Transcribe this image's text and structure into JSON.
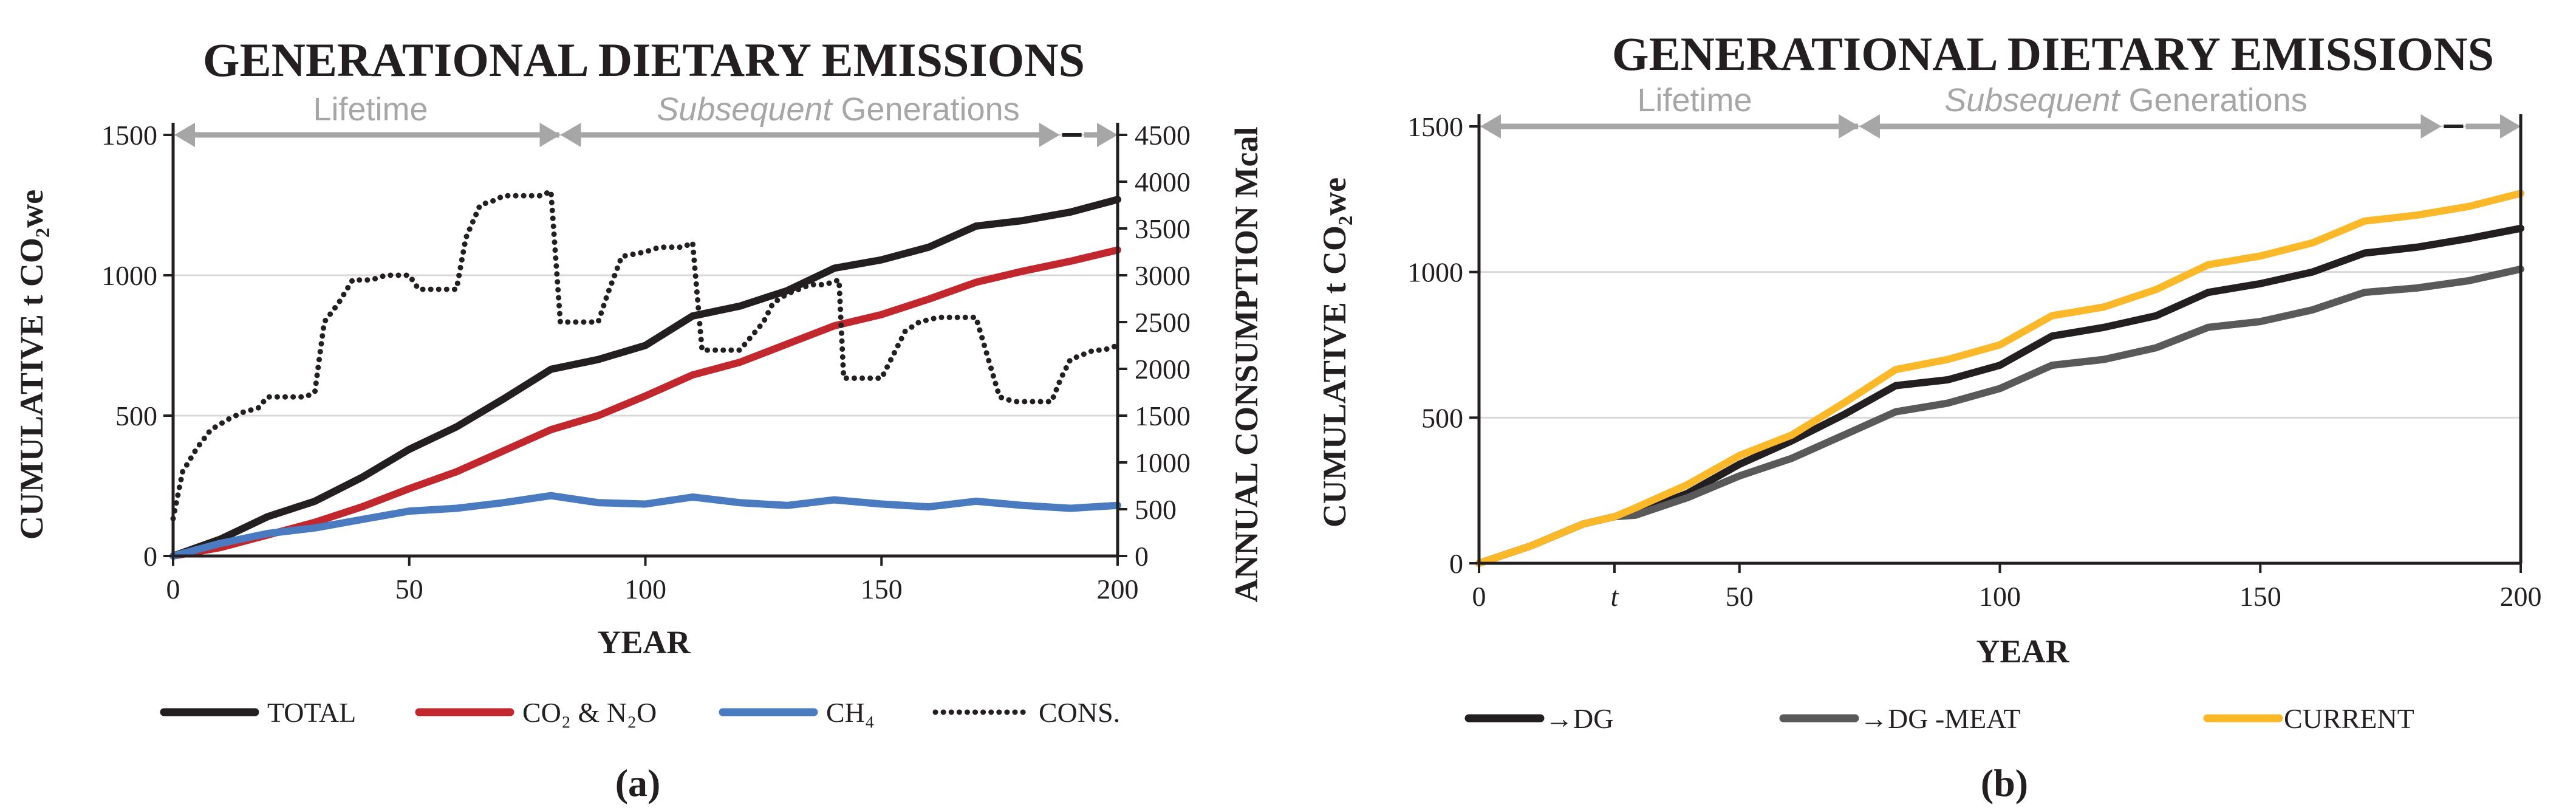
{
  "colors": {
    "total": "#231f20",
    "co2_n2o": "#c1272d",
    "ch4": "#4a7bc0",
    "cons": "#231f20",
    "to_dg": "#231f20",
    "to_dg_meat": "#595959",
    "current": "#fbb829",
    "band": "#a6a6a6",
    "grid": "#d9d9d9"
  },
  "chart_data": [
    {
      "panel_label": "(a)",
      "type": "line",
      "title": "GENERATIONAL DIETARY EMISSIONS",
      "xlabel": "YEAR",
      "ylabel": "CUMULATIVE t CO₂we",
      "y2label": "ANNUAL CONSUMPTION Mcal",
      "xlim": [
        0,
        200
      ],
      "ylim": [
        0,
        1500
      ],
      "y2lim": [
        0,
        4500
      ],
      "xticks": [
        "0",
        "50",
        "100",
        "150",
        "200"
      ],
      "yticks": [
        "0",
        "500",
        "1000",
        "1500"
      ],
      "y2ticks": [
        "0",
        "500",
        "1000",
        "1500",
        "2000",
        "2500",
        "3000",
        "3500",
        "4000",
        "4500"
      ],
      "band": {
        "lifetime": "Lifetime",
        "subsequent_italic": "Subsequent",
        "subsequent_rest": " Generations",
        "lifetime_end": 82,
        "break_at": 188
      },
      "legend": [
        "TOTAL",
        "CO₂ & N₂O",
        "CH₄",
        "CONS."
      ],
      "series": [
        {
          "name": "TOTAL",
          "color": "total",
          "style": "solid",
          "axis": "left",
          "x": [
            0,
            10,
            20,
            30,
            40,
            50,
            60,
            70,
            80,
            90,
            100,
            110,
            120,
            130,
            140,
            150,
            160,
            170,
            180,
            190,
            200
          ],
          "y": [
            0,
            60,
            140,
            195,
            280,
            380,
            460,
            560,
            665,
            700,
            750,
            855,
            890,
            945,
            1025,
            1055,
            1100,
            1175,
            1195,
            1225,
            1270
          ]
        },
        {
          "name": "CO₂ & N₂O",
          "color": "co2_n2o",
          "style": "solid",
          "axis": "left",
          "x": [
            0,
            10,
            20,
            30,
            40,
            50,
            60,
            70,
            80,
            90,
            100,
            110,
            120,
            130,
            140,
            150,
            160,
            170,
            180,
            190,
            200
          ],
          "y": [
            0,
            30,
            75,
            120,
            175,
            240,
            300,
            375,
            450,
            500,
            570,
            645,
            690,
            755,
            820,
            860,
            915,
            975,
            1015,
            1050,
            1090
          ]
        },
        {
          "name": "CH₄",
          "color": "ch4",
          "style": "solid",
          "axis": "left",
          "x": [
            0,
            10,
            20,
            30,
            40,
            50,
            60,
            70,
            80,
            90,
            100,
            110,
            120,
            130,
            140,
            150,
            160,
            170,
            180,
            190,
            200
          ],
          "y": [
            0,
            45,
            80,
            100,
            130,
            160,
            170,
            190,
            215,
            190,
            185,
            210,
            190,
            180,
            200,
            185,
            175,
            195,
            180,
            170,
            180
          ]
        },
        {
          "name": "CONS.",
          "color": "cons",
          "style": "dotted",
          "axis": "right",
          "x": [
            0,
            2,
            5,
            8,
            12,
            15,
            18,
            20,
            25,
            28,
            30,
            32,
            35,
            38,
            42,
            45,
            50,
            52,
            55,
            60,
            62,
            65,
            68,
            70,
            75,
            78,
            80,
            82,
            85,
            90,
            92,
            95,
            100,
            103,
            108,
            110,
            112,
            115,
            120,
            125,
            127,
            130,
            135,
            138,
            141,
            142,
            145,
            150,
            155,
            158,
            162,
            165,
            170,
            175,
            178,
            182,
            186,
            188,
            190,
            195,
            197,
            200
          ],
          "y": [
            400,
            900,
            1150,
            1350,
            1470,
            1540,
            1580,
            1700,
            1700,
            1700,
            1750,
            2500,
            2700,
            2950,
            2950,
            3000,
            3000,
            2850,
            2850,
            2850,
            3400,
            3750,
            3800,
            3850,
            3850,
            3850,
            3900,
            2500,
            2500,
            2500,
            2800,
            3200,
            3250,
            3300,
            3300,
            3350,
            2200,
            2200,
            2200,
            2500,
            2700,
            2800,
            2900,
            2900,
            2950,
            1900,
            1900,
            1900,
            2400,
            2500,
            2550,
            2550,
            2550,
            1700,
            1650,
            1650,
            1650,
            1900,
            2100,
            2200,
            2200,
            2250
          ]
        }
      ]
    },
    {
      "panel_label": "(b)",
      "type": "line",
      "title": "GENERATIONAL DIETARY EMISSIONS",
      "xlabel": "YEAR",
      "ylabel": "CUMULATIVE t CO₂we",
      "xlim": [
        0,
        200
      ],
      "ylim": [
        0,
        1500
      ],
      "xticks": [
        "0",
        "t",
        "50",
        "100",
        "150",
        "200"
      ],
      "t_tick_at": 26,
      "yticks": [
        "0",
        "500",
        "1000",
        "1500"
      ],
      "band": {
        "lifetime": "Lifetime",
        "subsequent_italic": "Subsequent",
        "subsequent_rest": " Generations",
        "lifetime_end": 73,
        "break_at": 185
      },
      "legend": [
        "→DG",
        "→DG -MEAT",
        "CURRENT"
      ],
      "series": [
        {
          "name": "→DG",
          "color": "to_dg",
          "style": "solid",
          "axis": "left",
          "x": [
            0,
            10,
            20,
            26,
            30,
            40,
            50,
            60,
            70,
            80,
            90,
            100,
            110,
            120,
            130,
            140,
            150,
            160,
            170,
            180,
            190,
            200
          ],
          "y": [
            0,
            60,
            135,
            160,
            170,
            240,
            340,
            420,
            510,
            610,
            630,
            680,
            780,
            810,
            850,
            930,
            960,
            1000,
            1065,
            1085,
            1115,
            1150
          ]
        },
        {
          "name": "→DG -MEAT",
          "color": "to_dg_meat",
          "style": "solid",
          "axis": "left",
          "x": [
            0,
            10,
            20,
            26,
            30,
            40,
            50,
            60,
            70,
            80,
            90,
            100,
            110,
            120,
            130,
            140,
            150,
            160,
            170,
            180,
            190,
            200
          ],
          "y": [
            0,
            60,
            135,
            160,
            165,
            225,
            300,
            360,
            440,
            520,
            550,
            600,
            680,
            700,
            740,
            810,
            830,
            870,
            930,
            945,
            970,
            1010
          ]
        },
        {
          "name": "CURRENT",
          "color": "current",
          "style": "solid",
          "axis": "left",
          "x": [
            0,
            10,
            20,
            26,
            30,
            40,
            50,
            60,
            70,
            80,
            90,
            100,
            110,
            120,
            130,
            140,
            150,
            160,
            170,
            180,
            190,
            200
          ],
          "y": [
            0,
            60,
            135,
            160,
            190,
            270,
            370,
            440,
            550,
            665,
            700,
            750,
            850,
            880,
            940,
            1025,
            1055,
            1100,
            1175,
            1195,
            1225,
            1270
          ]
        }
      ]
    }
  ]
}
